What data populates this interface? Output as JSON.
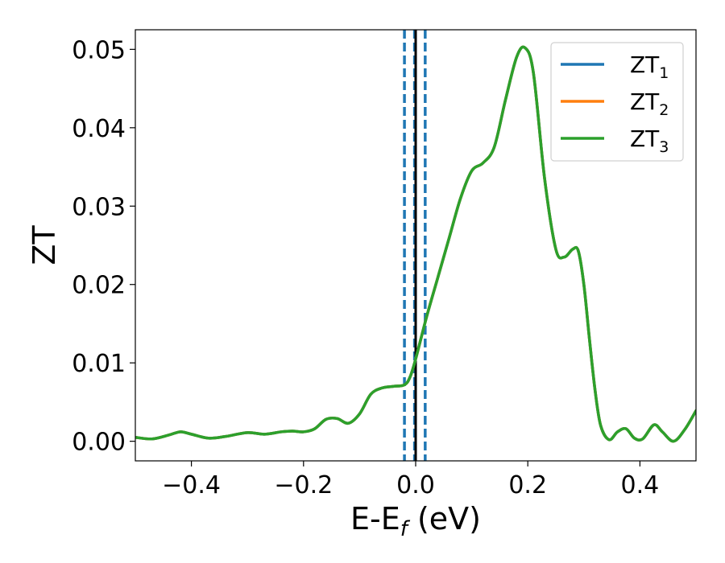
{
  "chart_data": {
    "type": "line",
    "xlabel": "E-E",
    "xlabel_sub": "f",
    "xlabel_unit": " (eV)",
    "ylabel": "ZT",
    "xlim": [
      -0.5,
      0.5
    ],
    "ylim": [
      -0.0025,
      0.0525
    ],
    "xticks": [
      -0.4,
      -0.2,
      0.0,
      0.2,
      0.4
    ],
    "xtick_labels": [
      "−0.4",
      "−0.2",
      "0.0",
      "0.2",
      "0.4"
    ],
    "yticks": [
      0.0,
      0.01,
      0.02,
      0.03,
      0.04,
      0.05
    ],
    "ytick_labels": [
      "0.00",
      "0.01",
      "0.02",
      "0.03",
      "0.04",
      "0.05"
    ],
    "grid": false,
    "legend_position": "top-right",
    "vlines": [
      {
        "x": -0.02,
        "style": "dashed",
        "color": "#1f77b4"
      },
      {
        "x": -0.002,
        "style": "dashed",
        "color": "#1f77b4"
      },
      {
        "x": 0.0,
        "style": "solid",
        "color": "#000000"
      },
      {
        "x": 0.017,
        "style": "dashed",
        "color": "#1f77b4"
      }
    ],
    "x": [
      -0.5,
      -0.47,
      -0.44,
      -0.42,
      -0.4,
      -0.37,
      -0.34,
      -0.3,
      -0.27,
      -0.24,
      -0.22,
      -0.2,
      -0.18,
      -0.16,
      -0.14,
      -0.12,
      -0.1,
      -0.08,
      -0.06,
      -0.04,
      -0.02,
      -0.01,
      0.0,
      0.02,
      0.04,
      0.06,
      0.08,
      0.1,
      0.12,
      0.14,
      0.16,
      0.18,
      0.195,
      0.21,
      0.23,
      0.25,
      0.265,
      0.28,
      0.29,
      0.3,
      0.31,
      0.32,
      0.33,
      0.345,
      0.36,
      0.375,
      0.39,
      0.405,
      0.425,
      0.44,
      0.46,
      0.48,
      0.5
    ],
    "series": [
      {
        "name": "ZT",
        "sub": "1",
        "color": "#1f77b4",
        "values": [
          0.0005,
          0.0003,
          0.0008,
          0.0012,
          0.0009,
          0.0004,
          0.0006,
          0.0011,
          0.0009,
          0.0012,
          0.0013,
          0.0012,
          0.0016,
          0.0028,
          0.0029,
          0.0023,
          0.0035,
          0.006,
          0.0068,
          0.007,
          0.0072,
          0.0082,
          0.0105,
          0.016,
          0.021,
          0.026,
          0.031,
          0.0345,
          0.0355,
          0.0375,
          0.0435,
          0.049,
          0.0502,
          0.047,
          0.0335,
          0.0245,
          0.0235,
          0.0245,
          0.0243,
          0.02,
          0.013,
          0.0065,
          0.002,
          0.0002,
          0.0012,
          0.0016,
          0.0004,
          0.0003,
          0.0021,
          0.0012,
          0.0,
          0.0015,
          0.0039
        ]
      },
      {
        "name": "ZT",
        "sub": "2",
        "color": "#ff7f0e",
        "values": [
          0.0005,
          0.0003,
          0.0008,
          0.0012,
          0.0009,
          0.0004,
          0.0006,
          0.0011,
          0.0009,
          0.0012,
          0.0013,
          0.0012,
          0.0016,
          0.0028,
          0.0029,
          0.0023,
          0.0035,
          0.006,
          0.0068,
          0.007,
          0.0072,
          0.0082,
          0.0105,
          0.016,
          0.021,
          0.026,
          0.031,
          0.0345,
          0.0355,
          0.0375,
          0.0435,
          0.049,
          0.0502,
          0.047,
          0.0335,
          0.0245,
          0.0235,
          0.0245,
          0.0243,
          0.02,
          0.013,
          0.0065,
          0.002,
          0.0002,
          0.0012,
          0.0016,
          0.0004,
          0.0003,
          0.0021,
          0.0012,
          0.0,
          0.0015,
          0.0039
        ]
      },
      {
        "name": "ZT",
        "sub": "3",
        "color": "#2ca02c",
        "values": [
          0.0005,
          0.0003,
          0.0008,
          0.0012,
          0.0009,
          0.0004,
          0.0006,
          0.0011,
          0.0009,
          0.0012,
          0.0013,
          0.0012,
          0.0016,
          0.0028,
          0.0029,
          0.0023,
          0.0035,
          0.006,
          0.0068,
          0.007,
          0.0072,
          0.0082,
          0.0105,
          0.016,
          0.021,
          0.026,
          0.031,
          0.0345,
          0.0355,
          0.0375,
          0.0435,
          0.049,
          0.0502,
          0.047,
          0.0335,
          0.0245,
          0.0235,
          0.0245,
          0.0243,
          0.02,
          0.013,
          0.0065,
          0.002,
          0.0002,
          0.0012,
          0.0016,
          0.0004,
          0.0003,
          0.0021,
          0.0012,
          0.0,
          0.0015,
          0.0039
        ]
      }
    ]
  }
}
